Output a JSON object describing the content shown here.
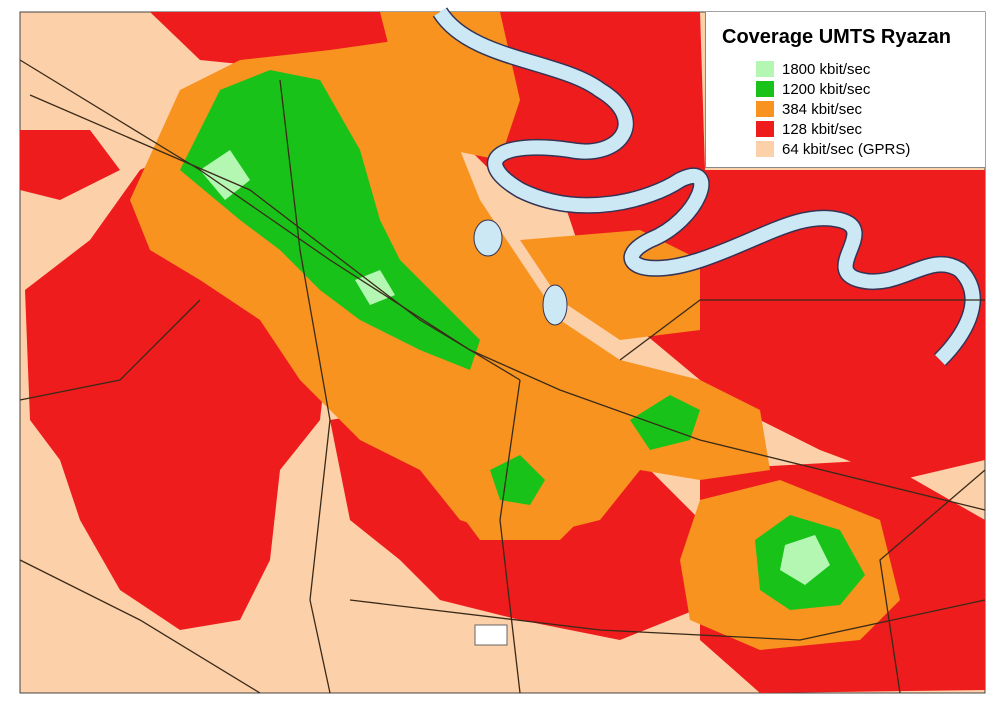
{
  "legend": {
    "title": "Coverage UMTS Ryazan",
    "items": [
      {
        "label": "1800 kbit/sec",
        "color": "#b3f7b3"
      },
      {
        "label": "1200 kbit/sec",
        "color": "#18c218"
      },
      {
        "label": "384 kbit/sec",
        "color": "#f7931e"
      },
      {
        "label": "128 kbit/sec",
        "color": "#ee1c1c"
      },
      {
        "label": "64 kbit/sec (GPRS)",
        "color": "#fcd0a8"
      }
    ]
  }
}
